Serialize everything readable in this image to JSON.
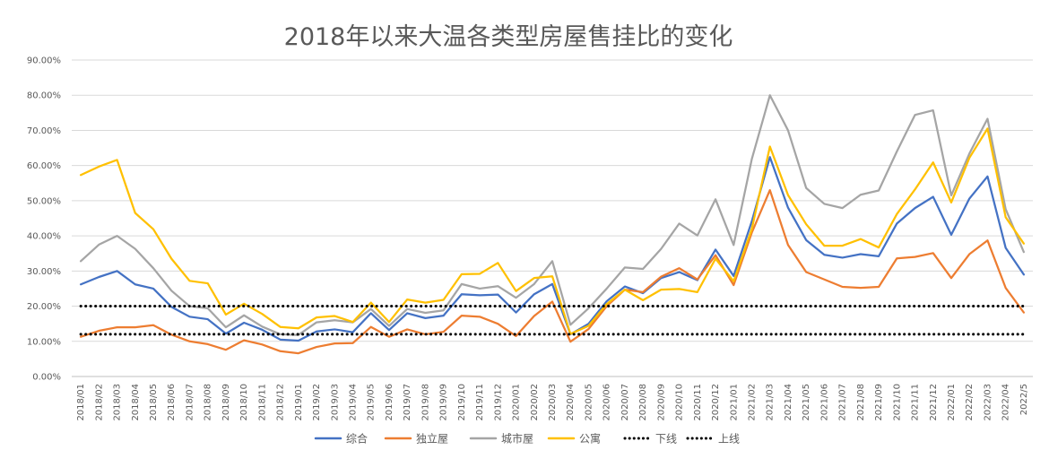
{
  "chart_data": {
    "type": "line",
    "title": "2018年以来大温各类型房屋售挂比的变化",
    "ylim": [
      0,
      90
    ],
    "yticks": [
      "0.00%",
      "10.00%",
      "20.00%",
      "30.00%",
      "40.00%",
      "50.00%",
      "60.00%",
      "70.00%",
      "80.00%",
      "90.00%"
    ],
    "ytick_values": [
      0,
      10,
      20,
      30,
      40,
      50,
      60,
      70,
      80,
      90
    ],
    "legend_position": "bottom",
    "grid": true,
    "categories": [
      "2018/01",
      "2018/02",
      "2018/03",
      "2018/04",
      "2018/05",
      "2018/06",
      "2018/07",
      "2018/08",
      "2018/09",
      "2018/10",
      "2018/11",
      "2018/12",
      "2019/01",
      "2019/02",
      "2019/03",
      "2019/04",
      "2019/05",
      "2019/06",
      "2019/07",
      "2019/08",
      "2019/09",
      "2019/10",
      "2019/11",
      "2019/12",
      "2020/01",
      "2020/02",
      "2020/03",
      "2020/04",
      "2020/05",
      "2020/06",
      "2020/07",
      "2020/08",
      "2020/09",
      "2020/10",
      "2020/11",
      "2020/12",
      "2021/01",
      "2021/02",
      "2021/03",
      "2021/04",
      "2021/05",
      "2021/06",
      "2021/07",
      "2021/08",
      "2021/09",
      "2021/10",
      "2021/11",
      "2021/12",
      "2022/01",
      "2022/02",
      "2022/03",
      "2022/04",
      "2022/5"
    ],
    "series": [
      {
        "name": "综合",
        "color": "#4472C4",
        "style": "solid",
        "values": [
          26.2,
          28.3,
          30.0,
          26.2,
          25.0,
          19.8,
          17.0,
          16.3,
          12.2,
          15.3,
          13.3,
          10.5,
          10.2,
          12.8,
          13.4,
          12.6,
          18.0,
          13.2,
          18.0,
          16.6,
          17.3,
          23.4,
          23.1,
          23.3,
          18.2,
          23.4,
          26.3,
          12.0,
          15.0,
          21.4,
          25.6,
          23.7,
          28.0,
          29.7,
          27.4,
          36.1,
          28.6,
          44.1,
          62.4,
          48.0,
          38.8,
          34.6,
          33.8,
          34.8,
          34.2,
          43.5,
          47.9,
          51.1,
          40.3,
          50.6,
          56.9,
          36.6,
          29.0
        ]
      },
      {
        "name": "独立屋",
        "color": "#ED7D31",
        "style": "solid",
        "values": [
          11.3,
          13.0,
          14.0,
          14.0,
          14.6,
          11.9,
          10.0,
          9.2,
          7.6,
          10.3,
          9.1,
          7.2,
          6.6,
          8.4,
          9.4,
          9.5,
          14.1,
          11.3,
          13.4,
          12.0,
          12.7,
          17.3,
          17.0,
          15.0,
          11.5,
          17.2,
          21.3,
          9.9,
          13.5,
          20.0,
          24.7,
          24.0,
          28.4,
          30.8,
          27.6,
          34.5,
          26.0,
          40.9,
          53.0,
          37.4,
          29.7,
          27.6,
          25.5,
          25.2,
          25.5,
          33.6,
          34.0,
          35.1,
          28.0,
          34.8,
          38.7,
          25.2,
          18.2
        ]
      },
      {
        "name": "城市屋",
        "color": "#A5A5A5",
        "style": "solid",
        "values": [
          32.8,
          37.5,
          40.0,
          36.3,
          30.8,
          24.4,
          20.0,
          19.4,
          14.0,
          17.4,
          14.2,
          12.0,
          11.8,
          15.4,
          16.0,
          15.4,
          19.2,
          14.4,
          19.2,
          18.1,
          18.8,
          26.3,
          25.0,
          25.7,
          22.4,
          26.3,
          32.8,
          14.7,
          19.4,
          25.0,
          31.0,
          30.6,
          36.3,
          43.5,
          40.1,
          50.4,
          37.4,
          61.8,
          80.0,
          70.0,
          53.6,
          49.1,
          47.9,
          51.7,
          52.9,
          64.0,
          74.4,
          75.7,
          51.5,
          63.4,
          73.3,
          47.6,
          35.4
        ]
      },
      {
        "name": "公寓",
        "color": "#FFC000",
        "style": "solid",
        "values": [
          57.3,
          59.7,
          61.6,
          46.5,
          41.9,
          33.5,
          27.2,
          26.5,
          17.6,
          20.7,
          17.8,
          14.1,
          13.7,
          16.8,
          17.2,
          15.5,
          21.0,
          15.5,
          21.9,
          21.0,
          21.8,
          29.1,
          29.2,
          32.3,
          24.3,
          28.0,
          28.5,
          12.1,
          14.4,
          20.6,
          24.7,
          21.7,
          24.7,
          24.9,
          24.0,
          33.5,
          27.1,
          41.9,
          65.4,
          51.6,
          43.3,
          37.2,
          37.2,
          39.1,
          36.7,
          46.2,
          53.2,
          60.9,
          49.5,
          62.2,
          70.5,
          45.3,
          37.8
        ]
      },
      {
        "name": "下线",
        "color": "#000000",
        "style": "dotted",
        "constant": 12
      },
      {
        "name": "上线",
        "color": "#000000",
        "style": "dotted",
        "constant": 20
      }
    ]
  }
}
